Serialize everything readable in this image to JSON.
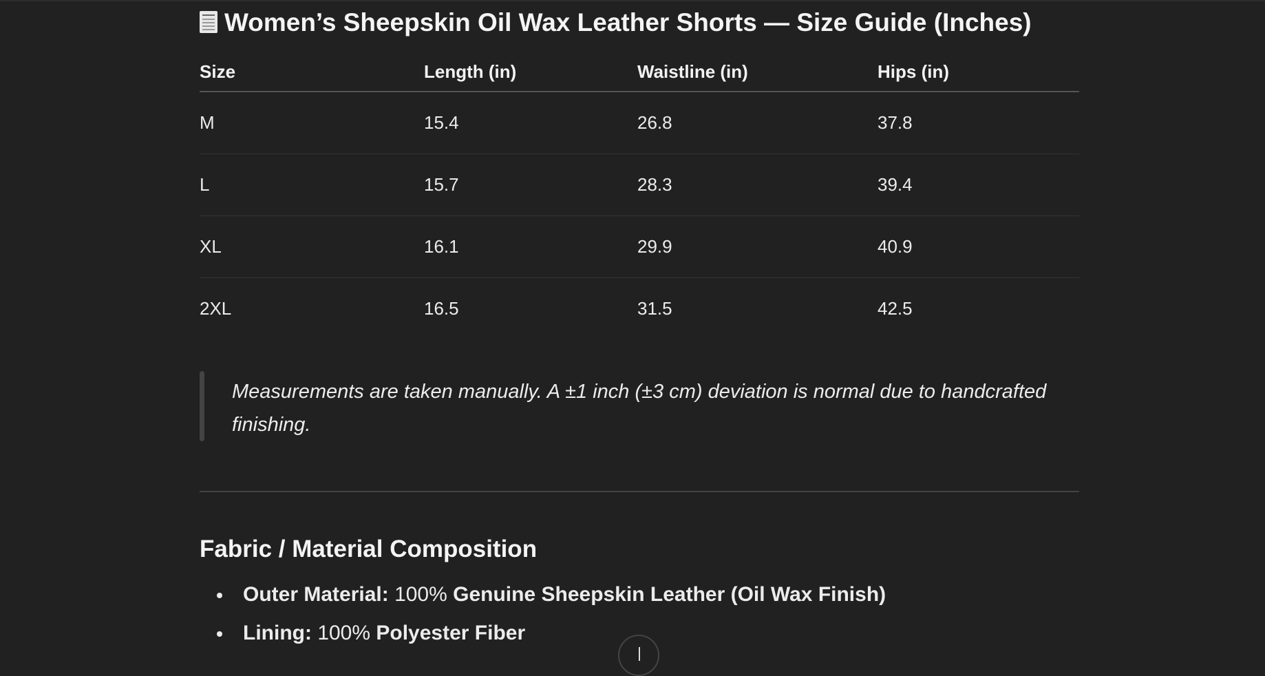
{
  "title": {
    "icon": "receipt-icon",
    "text": "Women’s Sheepskin Oil Wax Leather Shorts — Size Guide (Inches)"
  },
  "table": {
    "headers": [
      "Size",
      "Length (in)",
      "Waistline (in)",
      "Hips (in)"
    ],
    "rows": [
      [
        "M",
        "15.4",
        "26.8",
        "37.8"
      ],
      [
        "L",
        "15.7",
        "28.3",
        "39.4"
      ],
      [
        "XL",
        "16.1",
        "29.9",
        "40.9"
      ],
      [
        "2XL",
        "16.5",
        "31.5",
        "42.5"
      ]
    ]
  },
  "note": "Measurements are taken manually. A ±1 inch (±3 cm) deviation is normal due to handcrafted finishing.",
  "fabric": {
    "heading": "Fabric / Material Composition",
    "items": [
      {
        "label": "Outer Material:",
        "percent": "100%",
        "value": "Genuine Sheepskin Leather (Oil Wax Finish)"
      },
      {
        "label": "Lining:",
        "percent": "100%",
        "value": "Polyester Fiber"
      }
    ]
  },
  "scroll_button": {
    "icon": "arrow-down-icon"
  }
}
